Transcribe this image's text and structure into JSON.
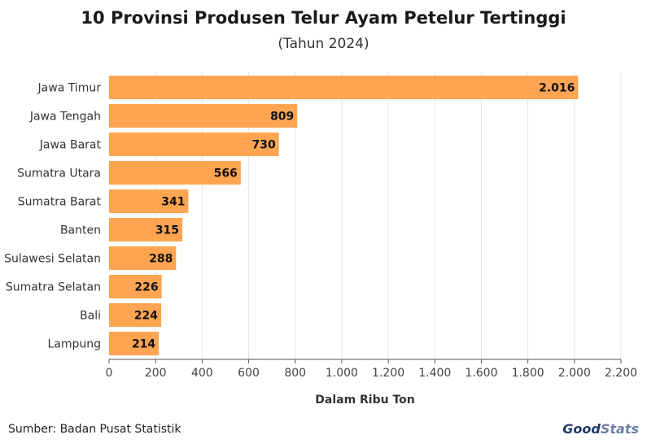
{
  "chart_data": {
    "type": "bar",
    "orientation": "horizontal",
    "title": "10 Provinsi Produsen Telur Ayam Petelur Tertinggi",
    "subtitle": "(Tahun 2024)",
    "xlabel": "Dalam Ribu Ton",
    "ylabel": "",
    "xlim": [
      0,
      2200
    ],
    "xticks": [
      0,
      200,
      400,
      600,
      800,
      1000,
      1200,
      1400,
      1600,
      1800,
      2000,
      2200
    ],
    "xtick_labels": [
      "0",
      "200",
      "400",
      "600",
      "800",
      "1.000",
      "1.200",
      "1.400",
      "1.600",
      "1.800",
      "2.000",
      "2.200"
    ],
    "categories": [
      "Jawa Timur",
      "Jawa Tengah",
      "Jawa Barat",
      "Sumatra Utara",
      "Sumatra Barat",
      "Banten",
      "Sulawesi Selatan",
      "Sumatra Selatan",
      "Bali",
      "Lampung"
    ],
    "values": [
      2016,
      809,
      730,
      566,
      341,
      315,
      288,
      226,
      224,
      214
    ],
    "value_labels": [
      "2.016",
      "809",
      "730",
      "566",
      "341",
      "315",
      "288",
      "226",
      "224",
      "214"
    ],
    "grid": true,
    "bar_color": "#FFA552"
  },
  "footer": {
    "source": "Sumber: Badan Pusat Statistik",
    "brand_part1": "Good",
    "brand_part2": "Stats"
  }
}
